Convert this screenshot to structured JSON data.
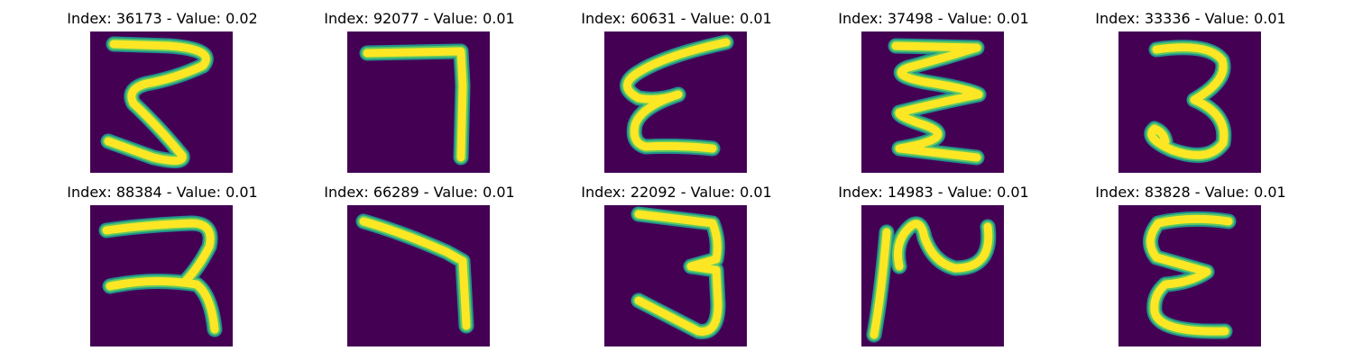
{
  "colors": {
    "background": "#440154",
    "stroke_edge": "#21918c",
    "stroke_mid": "#5ec962",
    "stroke_core": "#fde725"
  },
  "chart_data": [
    {
      "type": "image",
      "title": "Index: 36173 - Value: 0.02",
      "index": 36173,
      "value": 0.02
    },
    {
      "type": "image",
      "title": "Index: 92077 - Value: 0.01",
      "index": 92077,
      "value": 0.01
    },
    {
      "type": "image",
      "title": "Index: 60631 - Value: 0.01",
      "index": 60631,
      "value": 0.01
    },
    {
      "type": "image",
      "title": "Index: 37498 - Value: 0.01",
      "index": 37498,
      "value": 0.01
    },
    {
      "type": "image",
      "title": "Index: 33336 - Value: 0.01",
      "index": 33336,
      "value": 0.01
    },
    {
      "type": "image",
      "title": "Index: 88384 - Value: 0.01",
      "index": 88384,
      "value": 0.01
    },
    {
      "type": "image",
      "title": "Index: 66289 - Value: 0.01",
      "index": 66289,
      "value": 0.01
    },
    {
      "type": "image",
      "title": "Index: 22092 - Value: 0.01",
      "index": 22092,
      "value": 0.01
    },
    {
      "type": "image",
      "title": "Index: 14983 - Value: 0.01",
      "index": 14983,
      "value": 0.01
    },
    {
      "type": "image",
      "title": "Index: 83828 - Value: 0.01",
      "index": 83828,
      "value": 0.01
    }
  ]
}
